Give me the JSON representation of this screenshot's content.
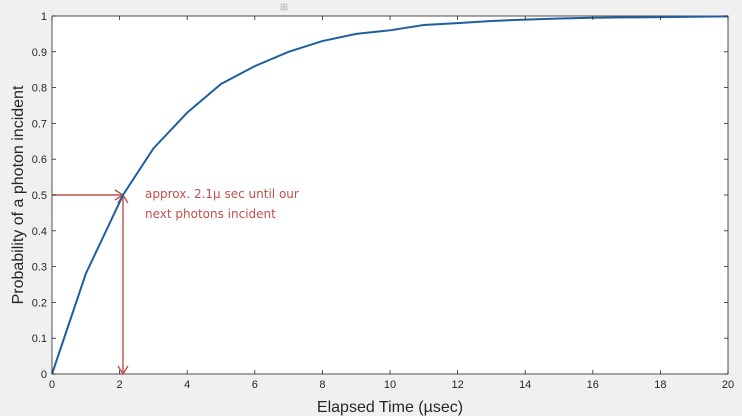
{
  "chart_data": {
    "type": "line",
    "title": "",
    "xlabel": "Elapsed Time (µsec)",
    "ylabel": "Probability of a photon incident",
    "xlim": [
      0,
      20
    ],
    "ylim": [
      0,
      1
    ],
    "x_ticks": [
      0,
      2,
      4,
      6,
      8,
      10,
      12,
      14,
      16,
      18,
      20
    ],
    "y_ticks": [
      0,
      0.1,
      0.2,
      0.3,
      0.4,
      0.5,
      0.6,
      0.7,
      0.8,
      0.9,
      1
    ],
    "grid": false,
    "series": [
      {
        "color": "#1f5f9f",
        "x": [
          0,
          1,
          2,
          2.1,
          3,
          4,
          5,
          6,
          7,
          8,
          9,
          10,
          11,
          12,
          13,
          14,
          15,
          16,
          17,
          18,
          19,
          20
        ],
        "y": [
          0,
          0.28,
          0.48,
          0.5,
          0.63,
          0.73,
          0.81,
          0.86,
          0.9,
          0.93,
          0.95,
          0.96,
          0.975,
          0.98,
          0.986,
          0.99,
          0.993,
          0.995,
          0.996,
          0.997,
          0.998,
          0.999
        ]
      }
    ],
    "annotation": {
      "color": "#c0504d",
      "point": {
        "x": 2.1,
        "y": 0.5
      },
      "lines": [
        "approx. 2.1µ sec until our",
        "next photons incident"
      ]
    }
  }
}
